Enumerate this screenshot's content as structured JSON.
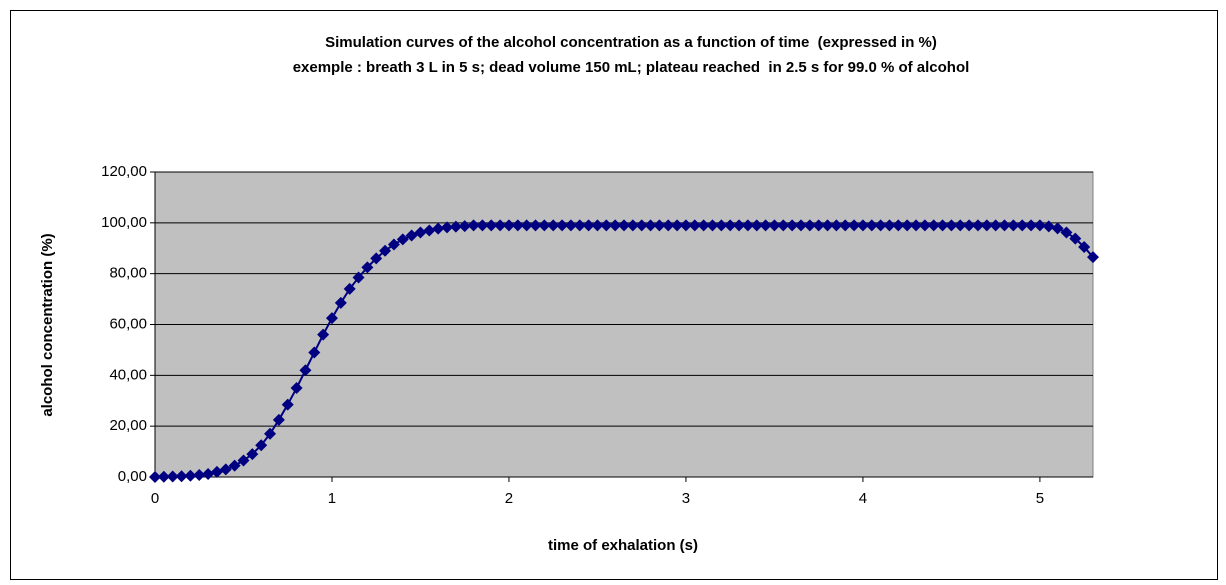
{
  "chart_data": {
    "type": "scatter",
    "title": "Simulation curves of the alcohol concentration as a function of time  (expressed in %)",
    "subtitle": "exemple : breath 3 L in 5 s; dead volume 150 mL; plateau reached  in 2.5 s for 99.0 % of alcohol",
    "x_label": "time of exhalation (s)",
    "y_label": "alcohol concentration (%)",
    "xlim": [
      0,
      5.3
    ],
    "ylim": [
      0,
      120
    ],
    "xticks": [
      0,
      1,
      2,
      3,
      4,
      5
    ],
    "yticks": [
      {
        "value": 0,
        "label": "0,00"
      },
      {
        "value": 20,
        "label": "20,00"
      },
      {
        "value": 40,
        "label": "40,00"
      },
      {
        "value": 60,
        "label": "60,00"
      },
      {
        "value": 80,
        "label": "80,00"
      },
      {
        "value": 100,
        "label": "100,00"
      },
      {
        "value": 120,
        "label": "120,00"
      }
    ],
    "grid": true,
    "series": [
      {
        "color": "#000080",
        "x": [
          0,
          0.05,
          0.1,
          0.15,
          0.2,
          0.25,
          0.3,
          0.35,
          0.4,
          0.45,
          0.5,
          0.55,
          0.6,
          0.65,
          0.7,
          0.75,
          0.8,
          0.85,
          0.9,
          0.95,
          1,
          1.05,
          1.1,
          1.15,
          1.2,
          1.25,
          1.3,
          1.35,
          1.4,
          1.45,
          1.5,
          1.55,
          1.6,
          1.65,
          1.7,
          1.75,
          1.8,
          1.85,
          1.9,
          1.95,
          2,
          2.05,
          2.1,
          2.15,
          2.2,
          2.25,
          2.3,
          2.35,
          2.4,
          2.45,
          2.5,
          2.55,
          2.6,
          2.65,
          2.7,
          2.75,
          2.8,
          2.85,
          2.9,
          2.95,
          3,
          3.05,
          3.1,
          3.15,
          3.2,
          3.25,
          3.3,
          3.35,
          3.4,
          3.45,
          3.5,
          3.55,
          3.6,
          3.65,
          3.7,
          3.75,
          3.8,
          3.85,
          3.9,
          3.95,
          4,
          4.05,
          4.1,
          4.15,
          4.2,
          4.25,
          4.3,
          4.35,
          4.4,
          4.45,
          4.5,
          4.55,
          4.6,
          4.65,
          4.7,
          4.75,
          4.8,
          4.85,
          4.9,
          4.95,
          5,
          5.05,
          5.1,
          5.15,
          5.2,
          5.25,
          5.3
        ],
        "values": [
          0,
          0.1,
          0.2,
          0.3,
          0.5,
          0.8,
          1.2,
          2,
          3,
          4.5,
          6.5,
          9,
          12.5,
          17,
          22.5,
          28.5,
          35,
          42,
          49,
          56,
          62.5,
          68.5,
          74,
          78.5,
          82.5,
          86,
          89,
          91.5,
          93.5,
          95,
          96.2,
          97,
          97.7,
          98.2,
          98.5,
          98.7,
          99,
          99,
          99,
          99,
          99,
          99,
          99,
          99,
          99,
          99,
          99,
          99,
          99,
          99,
          99,
          99,
          99,
          99,
          99,
          99,
          99,
          99,
          99,
          99,
          99,
          99,
          99,
          99,
          99,
          99,
          99,
          99,
          99,
          99,
          99,
          99,
          99,
          99,
          99,
          99,
          99,
          99,
          99,
          99,
          99,
          99,
          99,
          99,
          99,
          99,
          99,
          99,
          99,
          99,
          99,
          99,
          99,
          99,
          99,
          99,
          99,
          99,
          99,
          99,
          99,
          98.6,
          97.8,
          96.2,
          93.8,
          90.5,
          86.5
        ]
      }
    ]
  }
}
